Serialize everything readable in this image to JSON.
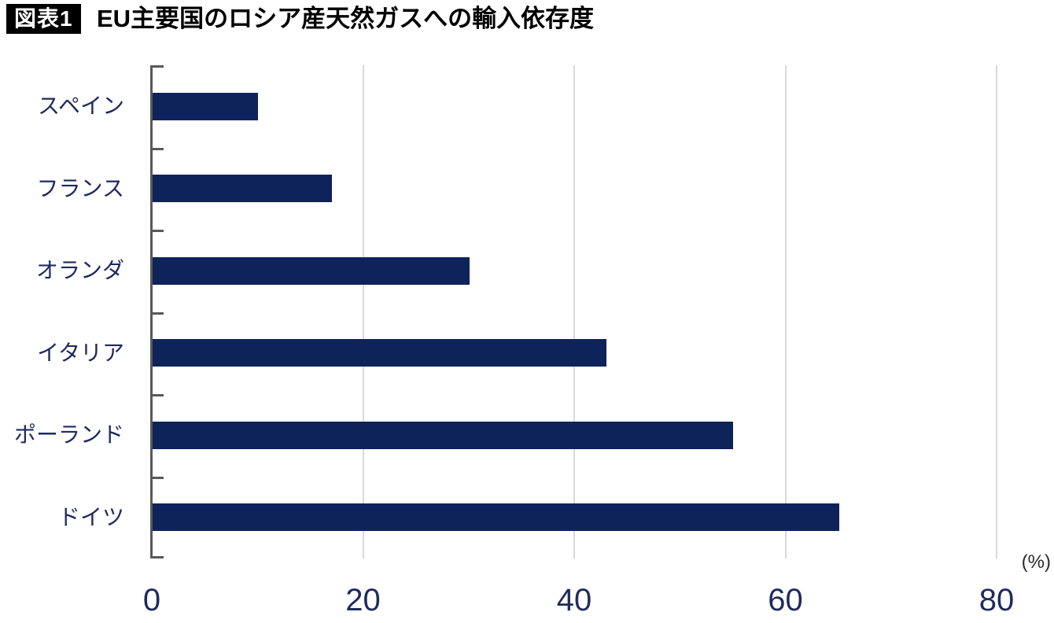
{
  "header": {
    "badge": "図表1",
    "title": "EU主要国のロシア産天然ガスへの輸入依存度"
  },
  "chart_data": {
    "type": "bar",
    "orientation": "horizontal",
    "title": "EU主要国のロシア産天然ガスへの輸入依存度",
    "title_badge": "図表1",
    "unit_label": "(%)",
    "categories": [
      "スペイン",
      "フランス",
      "オランダ",
      "イタリア",
      "ポーランド",
      "ドイツ"
    ],
    "values": [
      10,
      17,
      30,
      43,
      55,
      65
    ],
    "xlabel": "",
    "ylabel": "",
    "xlim": [
      0,
      80
    ],
    "x_ticks": [
      0,
      20,
      40,
      60,
      80
    ],
    "grid": true,
    "legend": false,
    "colors": {
      "bar": "#0e2359",
      "category_label": "#1f2a5e",
      "tick_label": "#1f2a5e",
      "axis": "#595959",
      "gridline": "#d9d9d9",
      "title": "#000000",
      "badge_background": "#000000",
      "badge_text": "#ffffff",
      "unit_label": "#2b2b2b"
    }
  }
}
